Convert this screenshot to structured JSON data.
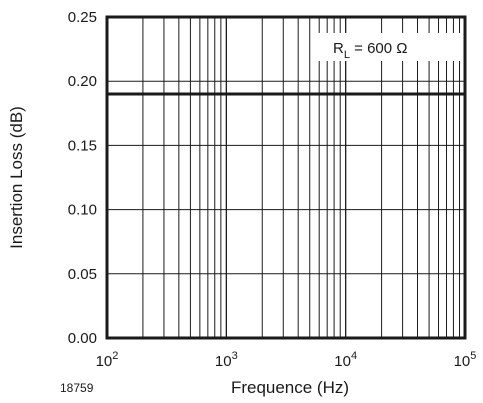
{
  "chart_data": {
    "type": "line",
    "title": "",
    "xlabel": "Frequence (Hz)",
    "ylabel": "Insertion Loss (dB)",
    "x_scale": "log",
    "xlim": [
      100,
      100000
    ],
    "ylim": [
      0.0,
      0.25
    ],
    "grid": true,
    "x_ticks": [
      {
        "base": "10",
        "exp": "2"
      },
      {
        "base": "10",
        "exp": "3"
      },
      {
        "base": "10",
        "exp": "4"
      },
      {
        "base": "10",
        "exp": "5"
      }
    ],
    "y_ticks": [
      "0.00",
      "0.05",
      "0.10",
      "0.15",
      "0.20",
      "0.25"
    ],
    "series": [
      {
        "x": [
          100,
          100000
        ],
        "y": [
          0.19,
          0.19
        ],
        "color": "#1a1a1a"
      }
    ],
    "annotation": {
      "main": "R",
      "sub": "L",
      "rest": " = 600 Ω"
    },
    "figure_id": "18759"
  }
}
